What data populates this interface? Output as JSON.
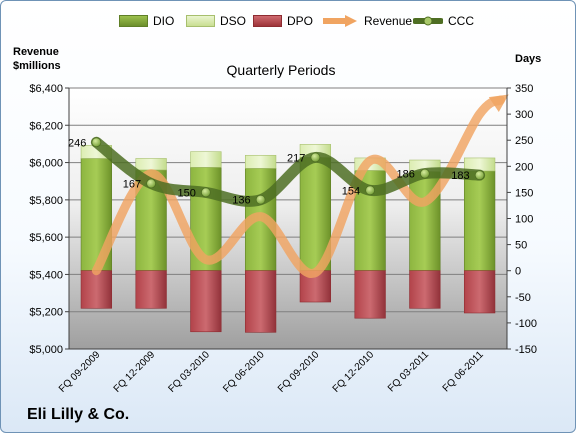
{
  "chart_data": {
    "type": "bar",
    "title": "Quarterly Periods",
    "ylabel": "Revenue\n$millions",
    "y2label": "Days",
    "categories": [
      "FQ 09-2009",
      "FQ 12-2009",
      "FQ 03-2010",
      "FQ 06-2010",
      "FQ 09-2010",
      "FQ 12-2010",
      "FQ 03-2011",
      "FQ 06-2011"
    ],
    "ylim": [
      5000,
      6400
    ],
    "y2lim": [
      -150,
      350
    ],
    "yticks": [
      "$5,000",
      "$5,200",
      "$5,400",
      "$5,600",
      "$5,800",
      "$6,000",
      "$6,200",
      "$6,400"
    ],
    "y2ticks": [
      "-150",
      "-100",
      "-50",
      "0",
      "50",
      "100",
      "150",
      "200",
      "250",
      "300",
      "350"
    ],
    "grid": true,
    "legend": "top",
    "series": [
      {
        "name": "DIO",
        "axis": "right",
        "kind": "stacked-bar",
        "color": "#7fa534",
        "values": [
          215,
          193,
          198,
          196,
          217,
          192,
          190,
          191
        ]
      },
      {
        "name": "DSO",
        "axis": "right",
        "kind": "stacked-bar",
        "color": "#d6e9a7",
        "values": [
          25,
          22,
          30,
          25,
          25,
          24,
          22,
          25
        ]
      },
      {
        "name": "DPO",
        "axis": "right",
        "kind": "stacked-bar",
        "color": "#b6474d",
        "values": [
          -72,
          -72,
          -117,
          -118,
          -60,
          -91,
          -72,
          -81
        ]
      },
      {
        "name": "Revenue",
        "axis": "left",
        "kind": "line",
        "color": "#f0a461",
        "values": [
          5420,
          5940,
          5480,
          5710,
          5410,
          6010,
          5790,
          6260
        ]
      },
      {
        "name": "CCC",
        "axis": "right",
        "kind": "line",
        "color": "#4e6e23",
        "values": [
          246,
          167,
          150,
          136,
          217,
          154,
          186,
          183
        ],
        "labels": [
          "246",
          "167",
          "150",
          "136",
          "217",
          "154",
          "186",
          "183"
        ]
      }
    ]
  },
  "footer": {
    "company": "Eli Lilly & Co."
  }
}
